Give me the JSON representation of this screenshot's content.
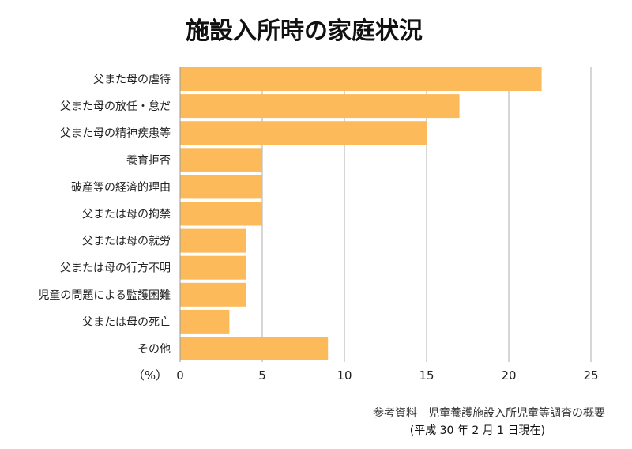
{
  "chart_data": {
    "type": "bar",
    "orientation": "horizontal",
    "title": "施設入所時の家庭状況",
    "xlabel": "",
    "unit_label": "（%）",
    "categories": [
      "父また母の虐待",
      "父また母の放任・怠だ",
      "父また母の精神疾患等",
      "養育拒否",
      "破産等の経済的理由",
      "父または母の拘禁",
      "父または母の就労",
      "父または母の行方不明",
      "児童の問題による監護困難",
      "父または母の死亡",
      "その他"
    ],
    "values": [
      22,
      17,
      15,
      5,
      5,
      5,
      4,
      4,
      4,
      3,
      9
    ],
    "xlim": [
      0,
      25
    ],
    "xticks": [
      0,
      5,
      10,
      15,
      20,
      25
    ],
    "grid": true,
    "bar_color": "#FDBA5A",
    "grid_color": "#C8C8C8"
  },
  "source": {
    "line1": "参考資料　児童養護施設入所児童等調査の概要",
    "line2": "(平成 30 年 2 月 1 日現在)"
  }
}
